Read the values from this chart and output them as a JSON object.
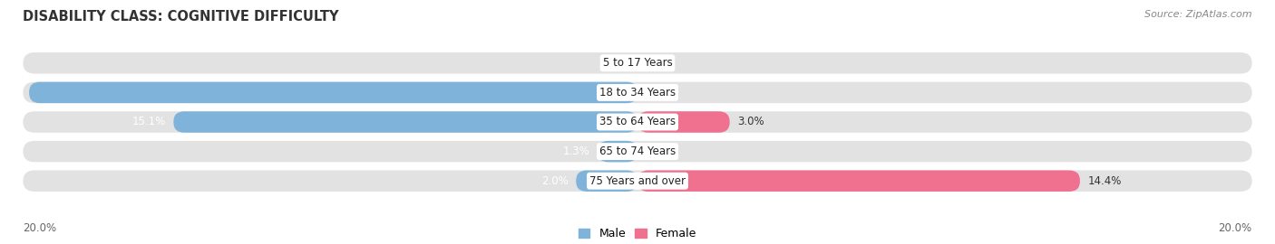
{
  "title": "DISABILITY CLASS: COGNITIVE DIFFICULTY",
  "source": "Source: ZipAtlas.com",
  "categories": [
    "5 to 17 Years",
    "18 to 34 Years",
    "35 to 64 Years",
    "65 to 74 Years",
    "75 Years and over"
  ],
  "male_values": [
    0.0,
    19.8,
    15.1,
    1.3,
    2.0
  ],
  "female_values": [
    0.0,
    0.0,
    3.0,
    0.0,
    14.4
  ],
  "male_color": "#7fb3d9",
  "female_color": "#f07090",
  "bar_bg_color": "#e2e2e2",
  "x_max": 20.0,
  "axis_label_left": "20.0%",
  "axis_label_right": "20.0%",
  "title_fontsize": 10.5,
  "source_fontsize": 8,
  "label_fontsize": 8.5,
  "category_fontsize": 8.5
}
